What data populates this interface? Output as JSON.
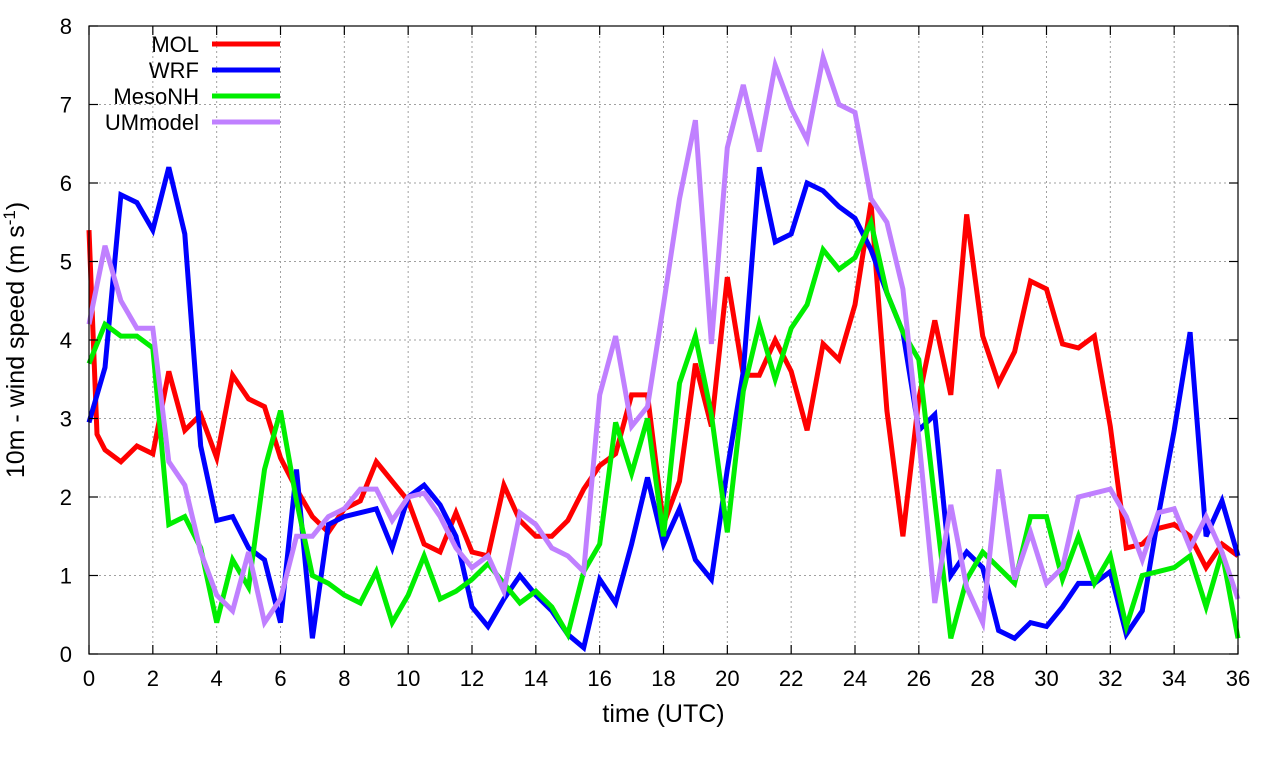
{
  "chart_data": {
    "type": "line",
    "xlabel": "time (UTC)",
    "ylabel": {
      "main": "10m - wind speed  (m s",
      "sup": "-1",
      "close": ")"
    },
    "xlim": [
      0,
      36
    ],
    "ylim": [
      0,
      8
    ],
    "xticks": [
      0,
      2,
      4,
      6,
      8,
      10,
      12,
      14,
      16,
      18,
      20,
      22,
      24,
      26,
      28,
      30,
      32,
      34,
      36
    ],
    "yticks": [
      0,
      1,
      2,
      3,
      4,
      5,
      6,
      7,
      8
    ],
    "grid": true,
    "legend_position": "top-left",
    "series": [
      {
        "name": "MOL",
        "color": "#ff0000",
        "points": [
          [
            0,
            5.4
          ],
          [
            0.25,
            2.8
          ],
          [
            0.5,
            2.6
          ],
          [
            1,
            2.45
          ],
          [
            1.5,
            2.65
          ],
          [
            2,
            2.55
          ],
          [
            2.5,
            3.6
          ],
          [
            3,
            2.85
          ],
          [
            3.5,
            3.05
          ],
          [
            4,
            2.5
          ],
          [
            4.5,
            3.55
          ],
          [
            5,
            3.25
          ],
          [
            5.5,
            3.15
          ],
          [
            6,
            2.5
          ],
          [
            6.5,
            2.1
          ],
          [
            7,
            1.75
          ],
          [
            7.5,
            1.55
          ],
          [
            8,
            1.85
          ],
          [
            8.5,
            1.95
          ],
          [
            9,
            2.45
          ],
          [
            9.5,
            2.2
          ],
          [
            10,
            1.95
          ],
          [
            10.5,
            1.4
          ],
          [
            11,
            1.3
          ],
          [
            11.5,
            1.8
          ],
          [
            12,
            1.3
          ],
          [
            12.5,
            1.25
          ],
          [
            13,
            2.15
          ],
          [
            13.5,
            1.7
          ],
          [
            14,
            1.5
          ],
          [
            14.5,
            1.5
          ],
          [
            15,
            1.7
          ],
          [
            15.5,
            2.1
          ],
          [
            16,
            2.4
          ],
          [
            16.5,
            2.55
          ],
          [
            17,
            3.3
          ],
          [
            17.5,
            3.3
          ],
          [
            18,
            1.65
          ],
          [
            18.5,
            2.2
          ],
          [
            19,
            3.7
          ],
          [
            19.5,
            2.9
          ],
          [
            20,
            4.8
          ],
          [
            20.5,
            3.55
          ],
          [
            21,
            3.55
          ],
          [
            21.5,
            4.0
          ],
          [
            22,
            3.6
          ],
          [
            22.5,
            2.85
          ],
          [
            23,
            3.95
          ],
          [
            23.5,
            3.75
          ],
          [
            24,
            4.45
          ],
          [
            24.5,
            5.75
          ],
          [
            25,
            3.1
          ],
          [
            25.5,
            1.5
          ],
          [
            26,
            3.25
          ],
          [
            26.5,
            4.25
          ],
          [
            27,
            3.3
          ],
          [
            27.5,
            5.6
          ],
          [
            28,
            4.05
          ],
          [
            28.5,
            3.45
          ],
          [
            29,
            3.85
          ],
          [
            29.5,
            4.75
          ],
          [
            30,
            4.65
          ],
          [
            30.5,
            3.95
          ],
          [
            31,
            3.9
          ],
          [
            31.5,
            4.05
          ],
          [
            32,
            2.9
          ],
          [
            32.5,
            1.35
          ],
          [
            33,
            1.4
          ],
          [
            33.5,
            1.6
          ],
          [
            34,
            1.65
          ],
          [
            34.5,
            1.5
          ],
          [
            35,
            1.1
          ],
          [
            35.5,
            1.4
          ],
          [
            36,
            1.25
          ]
        ]
      },
      {
        "name": "WRF",
        "color": "#0000ff",
        "points": [
          [
            0,
            2.95
          ],
          [
            0.5,
            3.65
          ],
          [
            1,
            5.85
          ],
          [
            1.5,
            5.75
          ],
          [
            2,
            5.4
          ],
          [
            2.5,
            6.2
          ],
          [
            3,
            5.35
          ],
          [
            3.5,
            2.65
          ],
          [
            4,
            1.7
          ],
          [
            4.5,
            1.75
          ],
          [
            5,
            1.35
          ],
          [
            5.5,
            1.2
          ],
          [
            6,
            0.4
          ],
          [
            6.5,
            2.35
          ],
          [
            7,
            0.2
          ],
          [
            7.5,
            1.65
          ],
          [
            8,
            1.75
          ],
          [
            8.5,
            1.8
          ],
          [
            9,
            1.85
          ],
          [
            9.5,
            1.35
          ],
          [
            10,
            2.0
          ],
          [
            10.5,
            2.15
          ],
          [
            11,
            1.9
          ],
          [
            11.5,
            1.5
          ],
          [
            12,
            0.6
          ],
          [
            12.5,
            0.35
          ],
          [
            13,
            0.7
          ],
          [
            13.5,
            1.0
          ],
          [
            14,
            0.75
          ],
          [
            14.5,
            0.55
          ],
          [
            15,
            0.25
          ],
          [
            15.5,
            0.08
          ],
          [
            16,
            0.95
          ],
          [
            16.5,
            0.65
          ],
          [
            17,
            1.4
          ],
          [
            17.5,
            2.25
          ],
          [
            18,
            1.4
          ],
          [
            18.5,
            1.85
          ],
          [
            19,
            1.2
          ],
          [
            19.5,
            0.95
          ],
          [
            20,
            2.35
          ],
          [
            20.5,
            3.6
          ],
          [
            21,
            6.2
          ],
          [
            21.5,
            5.25
          ],
          [
            22,
            5.35
          ],
          [
            22.5,
            6.0
          ],
          [
            23,
            5.9
          ],
          [
            23.5,
            5.7
          ],
          [
            24,
            5.55
          ],
          [
            24.5,
            5.15
          ],
          [
            25,
            4.6
          ],
          [
            25.5,
            4.1
          ],
          [
            26,
            2.85
          ],
          [
            26.5,
            3.05
          ],
          [
            27,
            1.0
          ],
          [
            27.5,
            1.3
          ],
          [
            28,
            1.1
          ],
          [
            28.5,
            0.3
          ],
          [
            29,
            0.2
          ],
          [
            29.5,
            0.4
          ],
          [
            30,
            0.35
          ],
          [
            30.5,
            0.6
          ],
          [
            31,
            0.9
          ],
          [
            31.5,
            0.9
          ],
          [
            32,
            1.05
          ],
          [
            32.5,
            0.25
          ],
          [
            33,
            0.55
          ],
          [
            33.5,
            1.75
          ],
          [
            34,
            2.85
          ],
          [
            34.5,
            4.1
          ],
          [
            35,
            1.5
          ],
          [
            35.5,
            1.95
          ],
          [
            36,
            1.25
          ]
        ]
      },
      {
        "name": "MesoNH",
        "color": "#00ee00",
        "points": [
          [
            0,
            3.7
          ],
          [
            0.5,
            4.2
          ],
          [
            1,
            4.05
          ],
          [
            1.5,
            4.05
          ],
          [
            2,
            3.9
          ],
          [
            2.5,
            1.65
          ],
          [
            3,
            1.75
          ],
          [
            3.5,
            1.35
          ],
          [
            4,
            0.4
          ],
          [
            4.5,
            1.2
          ],
          [
            5,
            0.85
          ],
          [
            5.5,
            2.35
          ],
          [
            6,
            3.1
          ],
          [
            6.5,
            1.95
          ],
          [
            7,
            1.0
          ],
          [
            7.5,
            0.9
          ],
          [
            8,
            0.75
          ],
          [
            8.5,
            0.65
          ],
          [
            9,
            1.05
          ],
          [
            9.5,
            0.4
          ],
          [
            10,
            0.75
          ],
          [
            10.5,
            1.25
          ],
          [
            11,
            0.7
          ],
          [
            11.5,
            0.8
          ],
          [
            12,
            0.95
          ],
          [
            12.5,
            1.15
          ],
          [
            13,
            0.9
          ],
          [
            13.5,
            0.65
          ],
          [
            14,
            0.8
          ],
          [
            14.5,
            0.6
          ],
          [
            15,
            0.25
          ],
          [
            15.5,
            1.05
          ],
          [
            16,
            1.4
          ],
          [
            16.5,
            2.95
          ],
          [
            17,
            2.3
          ],
          [
            17.5,
            3.0
          ],
          [
            18,
            1.5
          ],
          [
            18.5,
            3.45
          ],
          [
            19,
            4.05
          ],
          [
            19.5,
            3.05
          ],
          [
            20,
            1.55
          ],
          [
            20.5,
            3.35
          ],
          [
            21,
            4.2
          ],
          [
            21.5,
            3.5
          ],
          [
            22,
            4.15
          ],
          [
            22.5,
            4.45
          ],
          [
            23,
            5.15
          ],
          [
            23.5,
            4.9
          ],
          [
            24,
            5.05
          ],
          [
            24.5,
            5.5
          ],
          [
            25,
            4.6
          ],
          [
            25.5,
            4.1
          ],
          [
            26,
            3.75
          ],
          [
            26.5,
            1.95
          ],
          [
            27,
            0.2
          ],
          [
            27.5,
            0.95
          ],
          [
            28,
            1.3
          ],
          [
            28.5,
            1.1
          ],
          [
            29,
            0.9
          ],
          [
            29.5,
            1.75
          ],
          [
            30,
            1.75
          ],
          [
            30.5,
            0.95
          ],
          [
            31,
            1.5
          ],
          [
            31.5,
            0.9
          ],
          [
            32,
            1.25
          ],
          [
            32.5,
            0.35
          ],
          [
            33,
            1.0
          ],
          [
            33.5,
            1.05
          ],
          [
            34,
            1.1
          ],
          [
            34.5,
            1.25
          ],
          [
            35,
            0.6
          ],
          [
            35.5,
            1.3
          ],
          [
            36,
            0.2
          ]
        ]
      },
      {
        "name": "UMmodel",
        "color": "#c080ff",
        "points": [
          [
            0,
            4.2
          ],
          [
            0.5,
            5.2
          ],
          [
            1,
            4.5
          ],
          [
            1.5,
            4.15
          ],
          [
            2,
            4.15
          ],
          [
            2.5,
            2.45
          ],
          [
            3,
            2.15
          ],
          [
            3.5,
            1.3
          ],
          [
            4,
            0.75
          ],
          [
            4.5,
            0.55
          ],
          [
            5,
            1.3
          ],
          [
            5.5,
            0.4
          ],
          [
            6,
            0.7
          ],
          [
            6.5,
            1.5
          ],
          [
            7,
            1.5
          ],
          [
            7.5,
            1.75
          ],
          [
            8,
            1.85
          ],
          [
            8.5,
            2.1
          ],
          [
            9,
            2.1
          ],
          [
            9.5,
            1.7
          ],
          [
            10,
            2.0
          ],
          [
            10.5,
            2.05
          ],
          [
            11,
            1.75
          ],
          [
            11.5,
            1.35
          ],
          [
            12,
            1.1
          ],
          [
            12.5,
            1.25
          ],
          [
            13,
            0.8
          ],
          [
            13.5,
            1.8
          ],
          [
            14,
            1.65
          ],
          [
            14.5,
            1.35
          ],
          [
            15,
            1.25
          ],
          [
            15.5,
            1.05
          ],
          [
            16,
            3.3
          ],
          [
            16.5,
            4.05
          ],
          [
            17,
            2.9
          ],
          [
            17.5,
            3.15
          ],
          [
            18,
            4.45
          ],
          [
            18.5,
            5.8
          ],
          [
            19,
            6.8
          ],
          [
            19.5,
            3.95
          ],
          [
            20,
            6.45
          ],
          [
            20.5,
            7.25
          ],
          [
            21,
            6.4
          ],
          [
            21.5,
            7.5
          ],
          [
            22,
            6.95
          ],
          [
            22.5,
            6.55
          ],
          [
            23,
            7.6
          ],
          [
            23.5,
            7.0
          ],
          [
            24,
            6.9
          ],
          [
            24.5,
            5.8
          ],
          [
            25,
            5.5
          ],
          [
            25.5,
            4.65
          ],
          [
            26,
            2.75
          ],
          [
            26.5,
            0.65
          ],
          [
            27,
            1.9
          ],
          [
            27.5,
            0.85
          ],
          [
            28,
            0.4
          ],
          [
            28.5,
            2.35
          ],
          [
            29,
            0.95
          ],
          [
            29.5,
            1.55
          ],
          [
            30,
            0.9
          ],
          [
            30.5,
            1.1
          ],
          [
            31,
            2.0
          ],
          [
            31.5,
            2.05
          ],
          [
            32,
            2.1
          ],
          [
            32.5,
            1.75
          ],
          [
            33,
            1.2
          ],
          [
            33.5,
            1.8
          ],
          [
            34,
            1.85
          ],
          [
            34.5,
            1.35
          ],
          [
            35,
            1.75
          ],
          [
            35.5,
            1.3
          ],
          [
            36,
            0.7
          ]
        ]
      }
    ]
  }
}
